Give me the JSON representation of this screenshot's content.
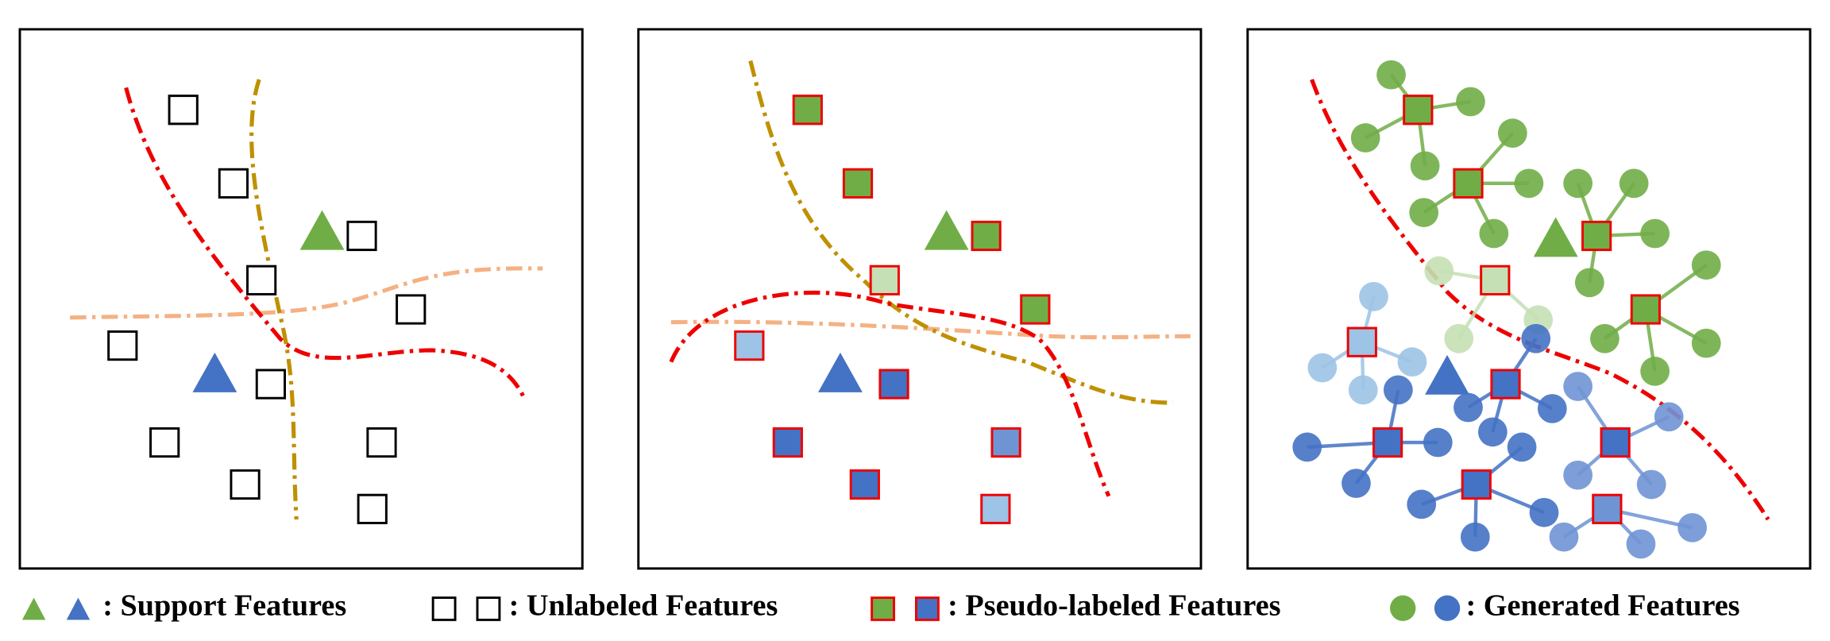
{
  "legend": [
    {
      "text": ": Support Features"
    },
    {
      "text": ": Unlabeled Features"
    },
    {
      "text": ": Pseudo-labeled Features"
    },
    {
      "text": ": Generated Features"
    }
  ]
}
